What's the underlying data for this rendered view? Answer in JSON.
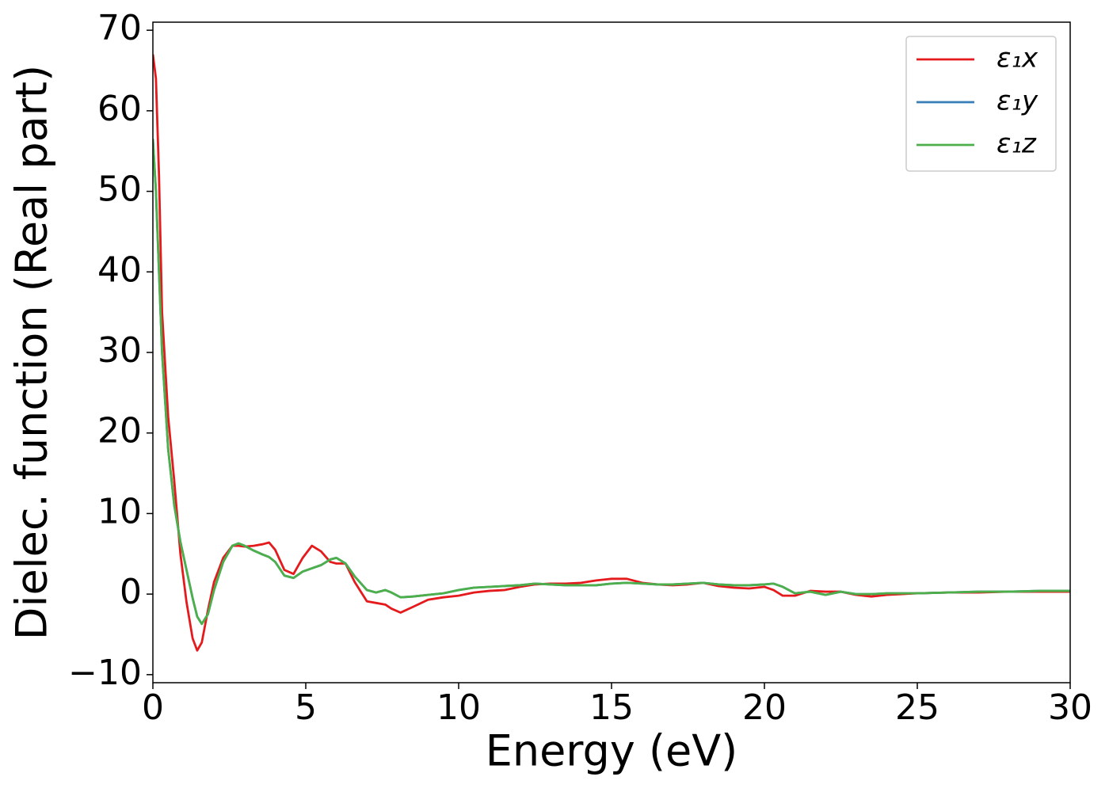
{
  "chart_data": {
    "type": "line",
    "xlabel": "Energy (eV)",
    "ylabel": "Dielec. function (Real part)",
    "x": [
      0,
      0.1,
      0.2,
      0.3,
      0.5,
      0.7,
      0.9,
      1.1,
      1.3,
      1.45,
      1.6,
      1.8,
      2.0,
      2.3,
      2.6,
      2.8,
      3.0,
      3.3,
      3.6,
      3.8,
      4.0,
      4.3,
      4.6,
      4.9,
      5.2,
      5.5,
      5.8,
      6.0,
      6.3,
      6.6,
      7.0,
      7.3,
      7.6,
      7.8,
      8.1,
      8.5,
      9,
      9.5,
      10,
      10.5,
      11,
      11.5,
      12,
      12.5,
      13,
      13.5,
      14,
      14.5,
      15,
      15.5,
      16,
      16.5,
      17,
      17.5,
      18,
      18.5,
      19,
      19.5,
      20,
      20.3,
      20.6,
      21,
      21.5,
      22,
      22.5,
      23,
      23.5,
      24,
      25,
      26,
      27,
      28,
      29,
      30
    ],
    "series": [
      {
        "name": "ε₁x",
        "color": "#e41a1c",
        "values": [
          67,
          64,
          52,
          35,
          22,
          14,
          5,
          -1,
          -5.5,
          -7,
          -6,
          -2,
          1.5,
          4.5,
          6,
          6,
          5.9,
          6,
          6.2,
          6.4,
          5.5,
          3,
          2.5,
          4.5,
          6,
          5.3,
          4,
          3.8,
          3.8,
          1.5,
          -0.9,
          -1.1,
          -1.3,
          -1.8,
          -2.3,
          -1.6,
          -0.7,
          -0.4,
          -0.2,
          0.2,
          0.4,
          0.5,
          0.9,
          1.2,
          1.3,
          1.3,
          1.4,
          1.7,
          1.9,
          1.9,
          1.4,
          1.2,
          1.1,
          1.2,
          1.4,
          1.0,
          0.8,
          0.7,
          0.9,
          0.5,
          -0.2,
          -0.2,
          0.4,
          0.3,
          0.3,
          -0.1,
          -0.3,
          -0.1,
          0.1,
          0.2,
          0.2,
          0.3,
          0.3,
          0.3
        ]
      },
      {
        "name": "ε₁y",
        "color": "#377eb8",
        "values": [
          56.5,
          50,
          40,
          30,
          18,
          11,
          6.5,
          3,
          -0.5,
          -2.8,
          -3.7,
          -2.5,
          0.5,
          4,
          6,
          6.3,
          6,
          5.4,
          4.9,
          4.6,
          4,
          2.3,
          2,
          2.8,
          3.2,
          3.6,
          4.3,
          4.5,
          3.8,
          2.2,
          0.5,
          0.2,
          0.5,
          0.2,
          -0.4,
          -0.3,
          -0.1,
          0.1,
          0.5,
          0.8,
          0.9,
          1.0,
          1.1,
          1.3,
          1.2,
          1.1,
          1.1,
          1.1,
          1.3,
          1.4,
          1.3,
          1.2,
          1.2,
          1.3,
          1.4,
          1.2,
          1.1,
          1.1,
          1.2,
          1.3,
          0.9,
          0.1,
          0.3,
          -0.1,
          0.3,
          0.0,
          0.0,
          0.1,
          0.1,
          0.2,
          0.3,
          0.3,
          0.4,
          0.4
        ]
      },
      {
        "name": "ε₁z",
        "color": "#4daf4a",
        "values": [
          56.5,
          50,
          40,
          30,
          18,
          11,
          6.5,
          3,
          -0.5,
          -2.8,
          -3.7,
          -2.5,
          0.5,
          4,
          6,
          6.3,
          6,
          5.4,
          4.9,
          4.6,
          4,
          2.3,
          2,
          2.8,
          3.2,
          3.6,
          4.3,
          4.5,
          3.8,
          2.2,
          0.5,
          0.2,
          0.5,
          0.2,
          -0.4,
          -0.3,
          -0.1,
          0.1,
          0.5,
          0.8,
          0.9,
          1.0,
          1.1,
          1.3,
          1.2,
          1.1,
          1.1,
          1.1,
          1.3,
          1.4,
          1.3,
          1.2,
          1.2,
          1.3,
          1.4,
          1.2,
          1.1,
          1.1,
          1.2,
          1.3,
          0.9,
          0.1,
          0.3,
          -0.1,
          0.3,
          0.0,
          0.0,
          0.1,
          0.1,
          0.2,
          0.3,
          0.3,
          0.4,
          0.4
        ]
      }
    ],
    "xlim": [
      0,
      30
    ],
    "xticks": [
      0,
      5,
      10,
      15,
      20,
      25,
      30
    ],
    "ylim": [
      -11,
      71
    ],
    "yticks": [
      {
        "value": -10,
        "label": "−10"
      },
      0,
      10,
      20,
      30,
      40,
      50,
      60,
      70
    ],
    "legend": "upper right",
    "grid": false
  }
}
